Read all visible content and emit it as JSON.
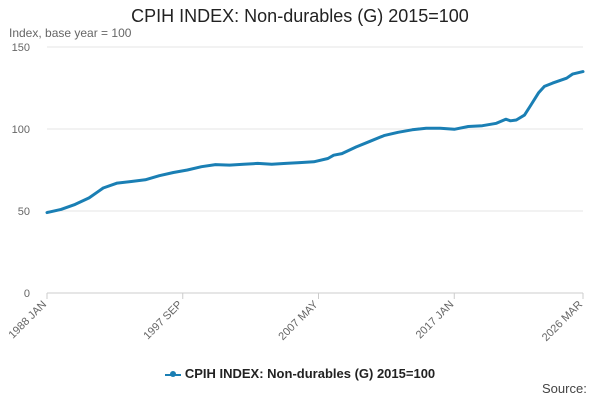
{
  "header": {
    "title": "CPIH INDEX: Non-durables (G) 2015=100",
    "subtitle": "Index, base year = 100"
  },
  "footer": {
    "source": "Source:"
  },
  "colors": {
    "series": "#1a7fb4",
    "grid": "#e6e6e6",
    "axis": "#cccccc"
  },
  "chart_data": {
    "type": "line",
    "title": "CPIH INDEX: Non-durables (G) 2015=100",
    "ylabel": "Index, base year = 100",
    "xlabel": "",
    "ylim": [
      0,
      150
    ],
    "yticks": [
      0,
      50,
      100,
      150
    ],
    "xlim": [
      "1988-01",
      "2026-03"
    ],
    "xtick_labels": [
      "1988 JAN",
      "1997 SEP",
      "2007 MAY",
      "2017 JAN",
      "2026 MAR"
    ],
    "xtick_dates": [
      "1988-01",
      "1997-09",
      "2007-05",
      "2017-01",
      "2026-03"
    ],
    "grid": true,
    "legend_position": "bottom",
    "series": [
      {
        "name": "CPIH INDEX: Non-durables (G) 2015=100",
        "points": [
          [
            "1988-01",
            49
          ],
          [
            "1989-01",
            51
          ],
          [
            "1990-01",
            54
          ],
          [
            "1991-01",
            58
          ],
          [
            "1991-09",
            62
          ],
          [
            "1992-01",
            64
          ],
          [
            "1993-01",
            67
          ],
          [
            "1994-01",
            68
          ],
          [
            "1995-01",
            69
          ],
          [
            "1996-01",
            71.5
          ],
          [
            "1997-01",
            73.5
          ],
          [
            "1998-01",
            75
          ],
          [
            "1999-01",
            77
          ],
          [
            "2000-01",
            78.3
          ],
          [
            "2001-01",
            78
          ],
          [
            "2002-01",
            78.5
          ],
          [
            "2003-01",
            79
          ],
          [
            "2004-01",
            78.5
          ],
          [
            "2005-01",
            79
          ],
          [
            "2006-01",
            79.5
          ],
          [
            "2007-01",
            80
          ],
          [
            "2008-01",
            82
          ],
          [
            "2008-06",
            84
          ],
          [
            "2009-01",
            85
          ],
          [
            "2010-01",
            89
          ],
          [
            "2011-01",
            92.5
          ],
          [
            "2012-01",
            96
          ],
          [
            "2013-01",
            98
          ],
          [
            "2014-01",
            99.5
          ],
          [
            "2015-01",
            100.5
          ],
          [
            "2016-01",
            100.5
          ],
          [
            "2017-01",
            99.8
          ],
          [
            "2018-01",
            101.5
          ],
          [
            "2019-01",
            102
          ],
          [
            "2020-01",
            103.5
          ],
          [
            "2020-09",
            106
          ],
          [
            "2021-01",
            105
          ],
          [
            "2021-06",
            105.5
          ],
          [
            "2022-01",
            108.5
          ],
          [
            "2022-06",
            114
          ],
          [
            "2023-01",
            122
          ],
          [
            "2023-06",
            126
          ],
          [
            "2024-01",
            128
          ],
          [
            "2025-01",
            131
          ],
          [
            "2025-06",
            133.5
          ],
          [
            "2026-03",
            135
          ]
        ]
      }
    ]
  }
}
